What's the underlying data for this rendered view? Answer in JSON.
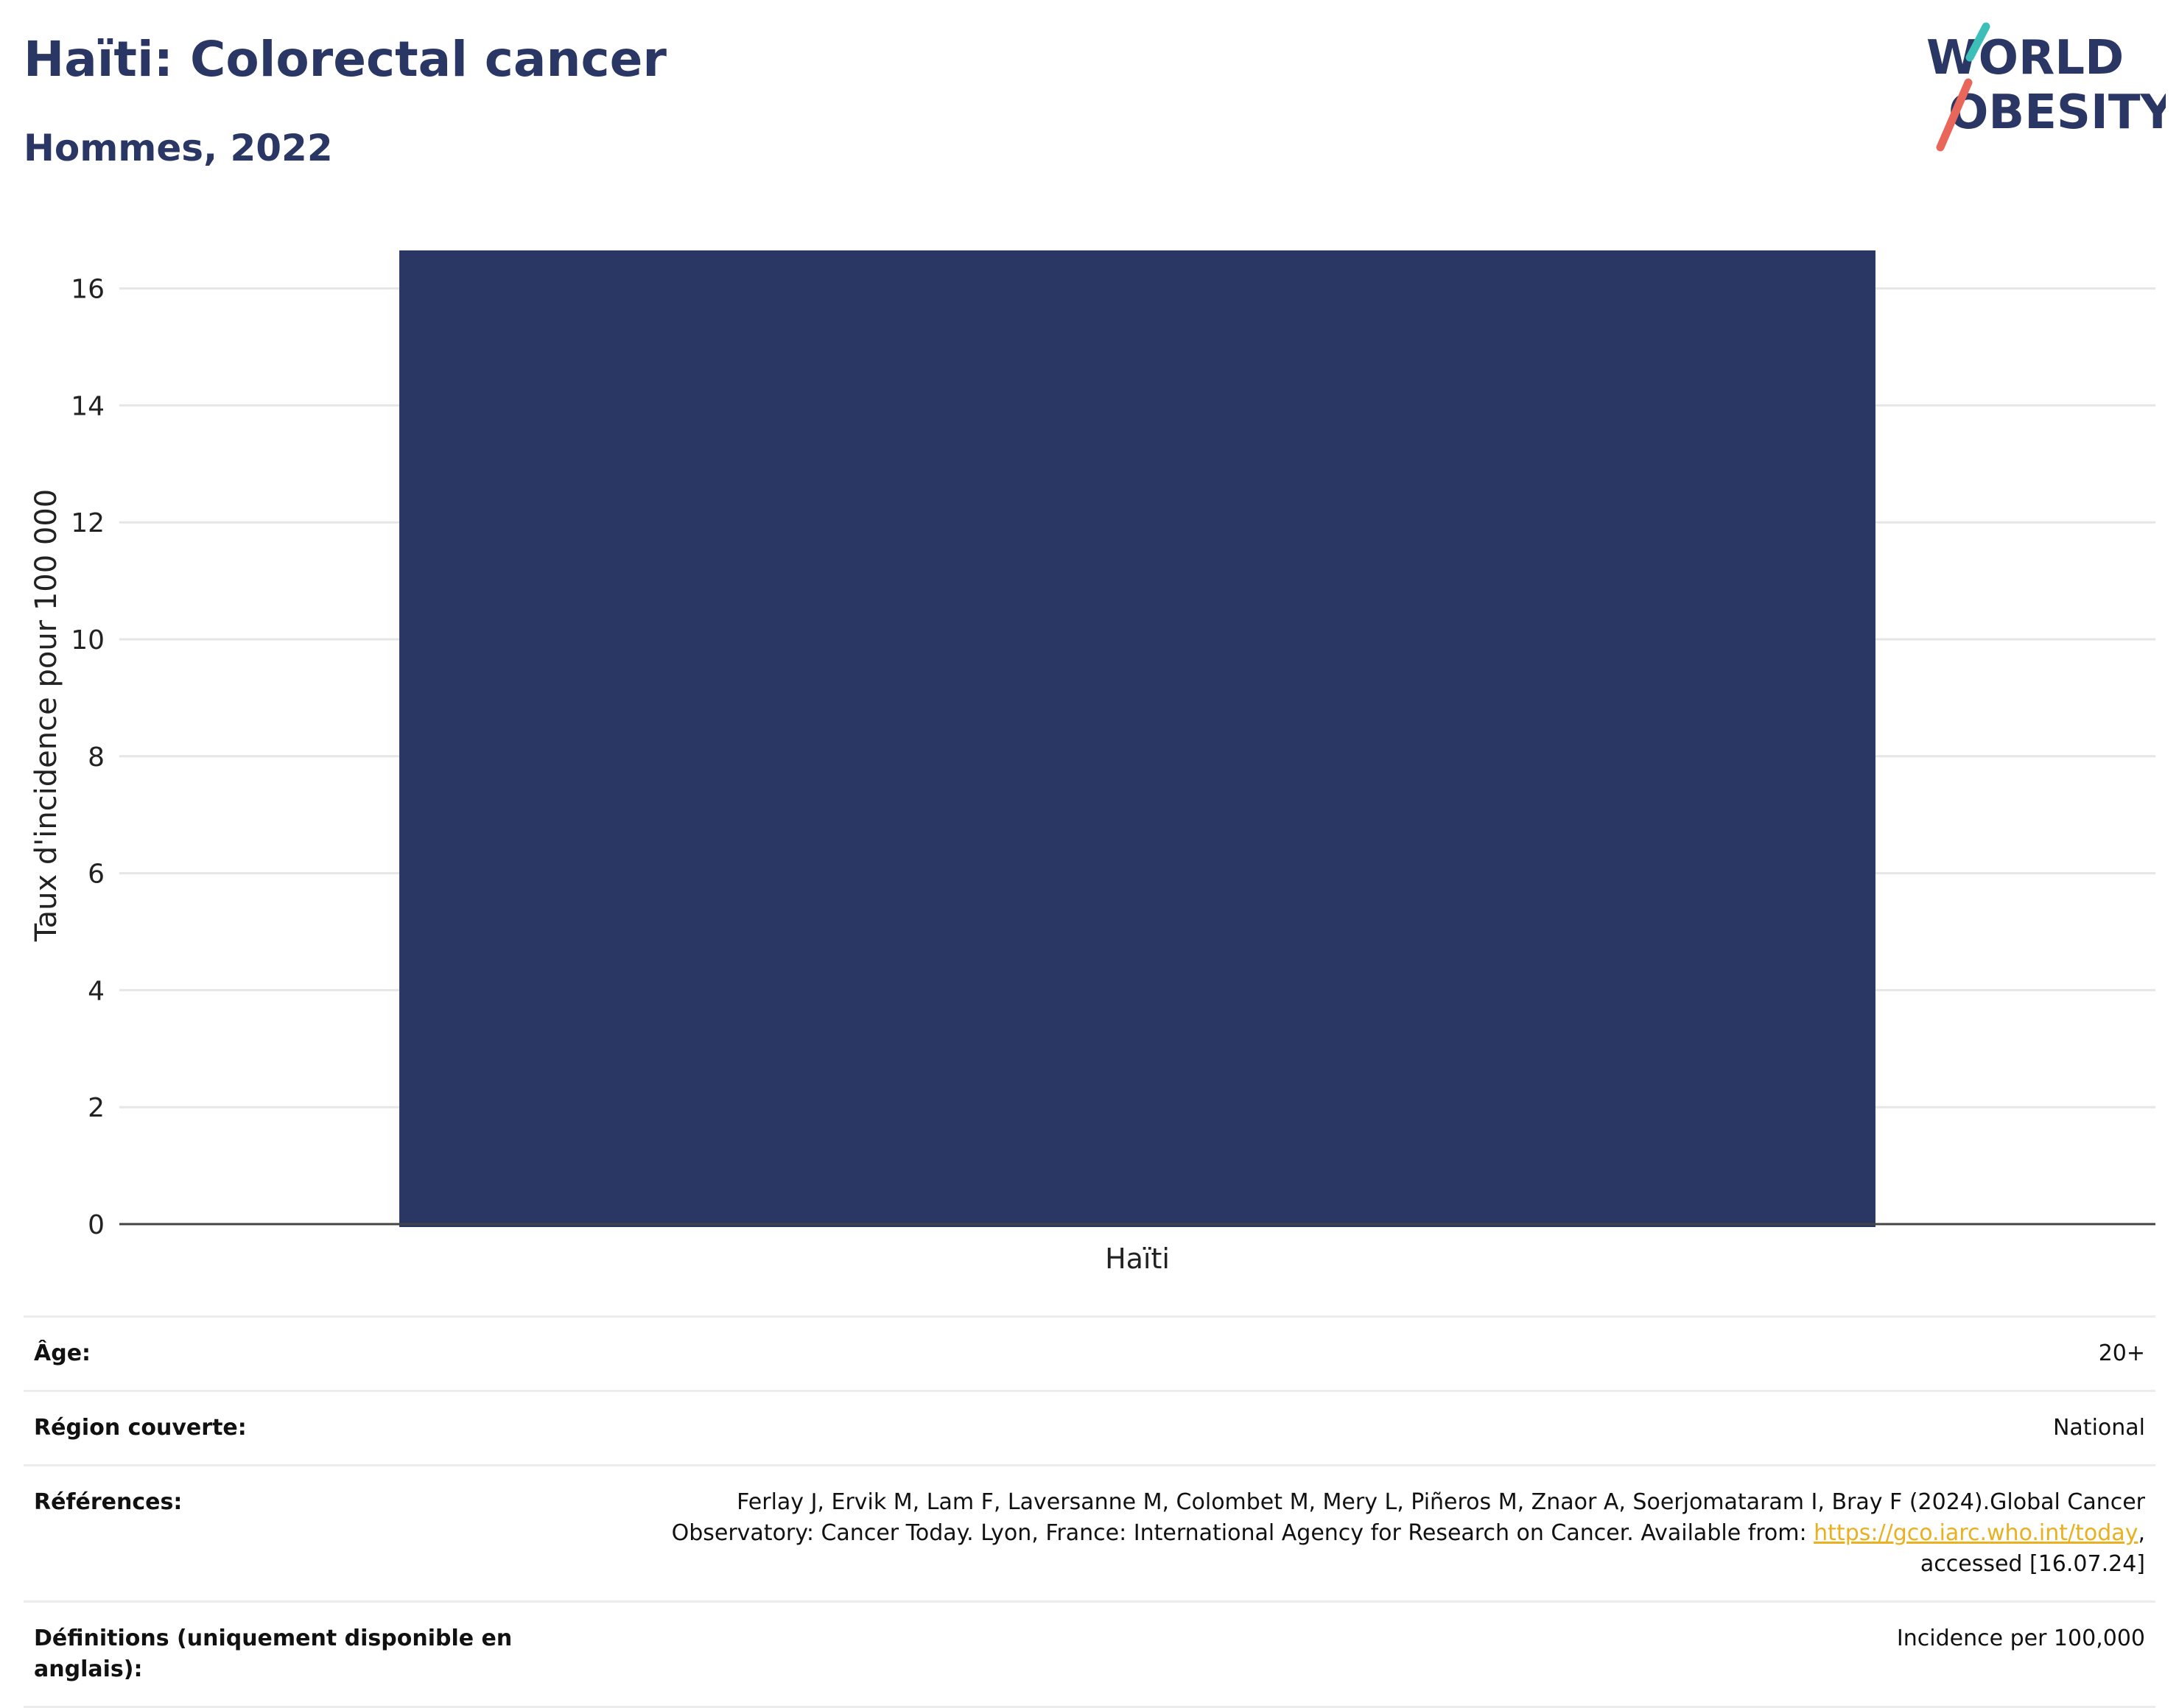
{
  "header": {
    "title": "Haïti: Colorectal cancer",
    "subtitle": "Hommes, 2022"
  },
  "logo": {
    "line1": "WORLD",
    "line2": "OBESITY",
    "colors": {
      "text": "#2a3663",
      "slash_top": "#3bbfb8",
      "slash_bottom": "#e8665a"
    }
  },
  "chart_data": {
    "type": "bar",
    "categories": [
      "Haïti"
    ],
    "values": [
      16.65
    ],
    "ylabel": "Taux d'incidence pour 100 000",
    "xlabel": "",
    "ylim": [
      0,
      16.65
    ],
    "yticks": [
      0,
      2,
      4,
      6,
      8,
      10,
      12,
      14,
      16
    ],
    "grid": true,
    "colors": {
      "bar": "#2a3663",
      "grid": "#e6e6e6",
      "axis": "#444444"
    }
  },
  "meta": [
    {
      "key": "Âge:",
      "value": "20+"
    },
    {
      "key": "Région couverte:",
      "value": "National"
    },
    {
      "key": "Références:",
      "value_before": "Ferlay J, Ervik M, Lam F, Laversanne M, Colombet M, Mery L, Piñeros M, Znaor A, Soerjomataram I, Bray F (2024).Global Cancer Observatory: Cancer Today. Lyon, France: International Agency for Research on Cancer. Available from: ",
      "link": "https://gco.iarc.who.int/today",
      "value_after": ", accessed [16.07.24]"
    },
    {
      "key": "Définitions (uniquement disponible en anglais):",
      "value": "Incidence per 100,000"
    }
  ]
}
